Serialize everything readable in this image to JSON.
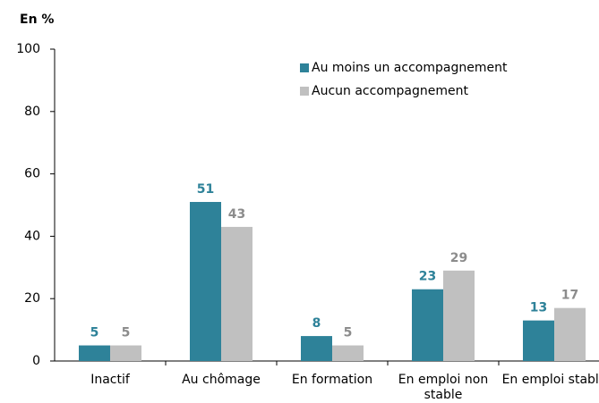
{
  "chart_data": {
    "type": "bar",
    "title": "En %",
    "categories": [
      "Inactif",
      "Au chômage",
      "En formation",
      "En emploi non stable",
      "En emploi stable"
    ],
    "series": [
      {
        "name": "Au moins un accompagnement",
        "color": "#2e8299",
        "label_color": "#2e8299",
        "values": [
          5,
          51,
          8,
          23,
          13
        ]
      },
      {
        "name": "Aucun accompagnement",
        "color": "#c0c0c0",
        "label_color": "#8c8c8c",
        "values": [
          5,
          43,
          5,
          29,
          17
        ]
      }
    ],
    "ylim": [
      0,
      100
    ],
    "yticks": [
      0,
      20,
      40,
      60,
      80,
      100
    ],
    "grid": false
  }
}
